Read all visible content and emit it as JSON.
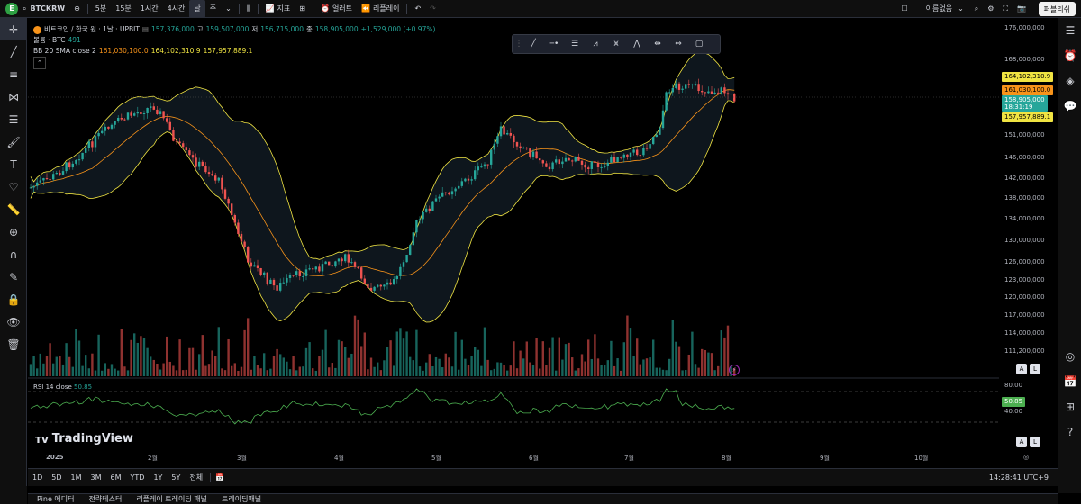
{
  "topbar": {
    "user_initial": "E",
    "symbol": "BTCKRW",
    "timeframes": [
      "5분",
      "15분",
      "1시간",
      "4시간",
      "날",
      "주"
    ],
    "indicators_label": "지표",
    "alert_label": "얼러트",
    "replay_label": "리플레이",
    "layout_name": "이름없음",
    "publish_label": "퍼블리쉬"
  },
  "legend": {
    "title": "비트코인 / 한국 원 · 1날 · UPBIT",
    "ohlc_o": "157,376,000",
    "ohlc_h_label": "고",
    "ohlc_h": "159,507,000",
    "ohlc_l_label": "저",
    "ohlc_l": "156,715,000",
    "ohlc_c_label": "종",
    "ohlc_c": "158,905,000",
    "change": "+1,529,000 (+0.97%)",
    "volume_label": "볼륨 · BTC",
    "volume_value": "491",
    "bb_label": "BB 20 SMA close 2",
    "bb_mid": "161,030,100.0",
    "bb_upper": "164,102,310.9",
    "bb_lower": "157,957,889.1"
  },
  "price_axis": {
    "labels": [
      "176,000,000",
      "168,000,000",
      "151,000,000",
      "146,000,000",
      "142,000,000",
      "138,000,000",
      "134,000,000",
      "130,000,000",
      "126,000,000",
      "123,000,000",
      "120,000,000",
      "117,000,000",
      "114,000,000",
      "111,200,000"
    ],
    "tag_upper": "164,102,310.9",
    "tag_mid": "161,030,100.0",
    "tag_price": "158,905,000",
    "tag_countdown": "18:31:19",
    "tag_lower": "157,957,889.1",
    "rsi_80": "80.00",
    "rsi_value": "50.85",
    "rsi_40": "40.00"
  },
  "time_axis": {
    "labels": [
      "2025",
      "2월",
      "3월",
      "4월",
      "5월",
      "6월",
      "7월",
      "8월",
      "9월",
      "10월"
    ]
  },
  "rsi": {
    "label": "RSI 14 close",
    "value": "50.85"
  },
  "tv_logo": "TradingView",
  "bottombar": {
    "ranges": [
      "1D",
      "5D",
      "1M",
      "3M",
      "6M",
      "YTD",
      "1Y",
      "5Y",
      "전체"
    ],
    "clock": "14:28:41 UTC+9"
  },
  "panels": [
    "Pine 에디터",
    "전략테스터",
    "리플레이 트레이딩 패널",
    "트레이딩패널"
  ],
  "colors": {
    "up": "#26a69a",
    "down": "#ef5350",
    "bb_band": "#f0e442",
    "bb_basis": "#f7931a",
    "rsi_line": "#4caf50"
  }
}
